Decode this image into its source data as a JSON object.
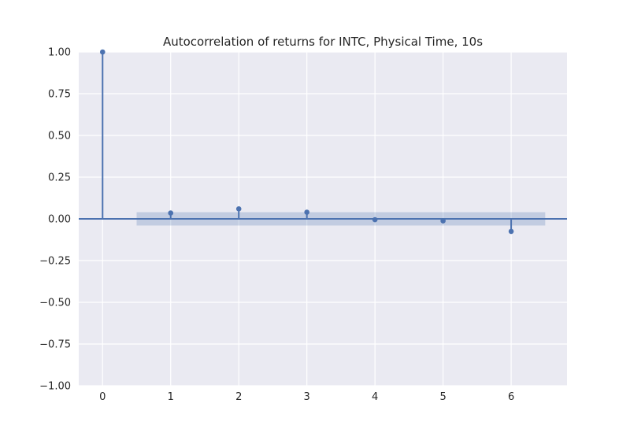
{
  "chart_data": {
    "type": "stem",
    "title": "Autocorrelation of returns for INTC, Physical Time, 10s",
    "xlabel": "",
    "ylabel": "",
    "xlim": [
      -0.35,
      6.82
    ],
    "ylim": [
      -1.0,
      1.0
    ],
    "xticks": [
      0,
      1,
      2,
      3,
      4,
      5,
      6
    ],
    "xtick_labels": [
      "0",
      "1",
      "2",
      "3",
      "4",
      "5",
      "6"
    ],
    "yticks": [
      1.0,
      0.75,
      0.5,
      0.25,
      0.0,
      -0.25,
      -0.5,
      -0.75,
      -1.0
    ],
    "ytick_labels": [
      "1.00",
      "0.75",
      "0.50",
      "0.25",
      "0.00",
      "−0.25",
      "−0.50",
      "−0.75",
      "−1.00"
    ],
    "grid": true,
    "lags": [
      0,
      1,
      2,
      3,
      4,
      5,
      6
    ],
    "values": [
      1.0,
      0.035,
      0.06,
      0.04,
      -0.005,
      -0.012,
      -0.075
    ],
    "confidence_band": {
      "x_range": [
        0.5,
        6.5
      ],
      "y_range": [
        -0.04,
        0.04
      ]
    },
    "colors": {
      "background": "#eaeaf2",
      "grid": "#ffffff",
      "series": "#4c72b0",
      "band": "#4c72b0"
    }
  }
}
